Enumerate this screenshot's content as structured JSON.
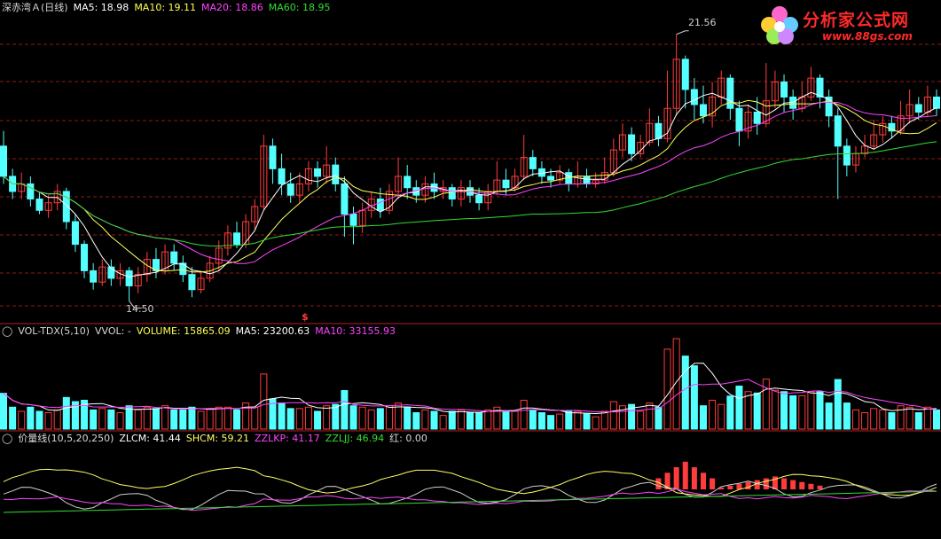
{
  "colors": {
    "up": "#ff3c3c",
    "down": "#54ffff",
    "ma5": "#ffffff",
    "ma10": "#ffff55",
    "ma20": "#ff44ff",
    "ma60": "#33dd33",
    "grid": "#8b1a1a",
    "white": "#d0d0d0",
    "zzlkp": "#ff44ff",
    "zzljj": "#33dd33",
    "shcm": "#ffff66"
  },
  "header": {
    "title": "深赤湾Ａ(日线)",
    "ma5": "MA5: 18.98",
    "ma10": "MA10: 19.11",
    "ma20": "MA20: 18.86",
    "ma60": "MA60: 18.95"
  },
  "price_panel": {
    "high_label": "21.56",
    "low_label": "14.50",
    "marker": "$"
  },
  "vol_panel": {
    "name": "VOL-TDX(5,10)",
    "vvol": "VVOL: -",
    "volume": "VOLUME: 15865.09",
    "ma5": "MA5: 23200.63",
    "ma10": "MA10: 33155.93"
  },
  "ind_panel": {
    "name": "价量线(10,5,20,250)",
    "zlcm": "ZLCM: 41.44",
    "shcm": "SHCM: 59.21",
    "zzlkp": "ZZLKP: 41.17",
    "zzljj": "ZZLJJ: 46.94",
    "red": "红: 0.00"
  },
  "logo": {
    "text": "分析家公式网",
    "url": "www.88gs.com"
  },
  "chart_data": {
    "type": "candlestick",
    "title": "深赤湾Ａ(日线)",
    "price_high": 21.56,
    "price_low": 14.5,
    "candles": [
      [
        18.6,
        17.8,
        19.0,
        17.6
      ],
      [
        17.8,
        17.4,
        18.0,
        17.2
      ],
      [
        17.4,
        17.6,
        17.9,
        17.2
      ],
      [
        17.6,
        17.2,
        17.8,
        17.0
      ],
      [
        17.2,
        16.9,
        17.4,
        16.8
      ],
      [
        16.9,
        17.1,
        17.3,
        16.7
      ],
      [
        17.1,
        17.4,
        17.6,
        16.9
      ],
      [
        17.4,
        16.6,
        17.5,
        16.4
      ],
      [
        16.6,
        16.0,
        16.8,
        15.8
      ],
      [
        16.0,
        15.3,
        16.1,
        15.1
      ],
      [
        15.3,
        15.0,
        15.5,
        14.8
      ],
      [
        15.0,
        15.4,
        15.6,
        14.9
      ],
      [
        15.4,
        15.1,
        15.6,
        14.9
      ],
      [
        15.1,
        15.3,
        15.5,
        14.9
      ],
      [
        15.3,
        14.9,
        15.4,
        14.5
      ],
      [
        14.9,
        15.2,
        15.4,
        14.7
      ],
      [
        15.2,
        15.6,
        15.8,
        15.0
      ],
      [
        15.6,
        15.3,
        15.9,
        15.1
      ],
      [
        15.3,
        15.8,
        16.0,
        15.2
      ],
      [
        15.8,
        15.5,
        16.0,
        15.3
      ],
      [
        15.5,
        15.2,
        15.7,
        15.0
      ],
      [
        15.2,
        14.8,
        15.4,
        14.6
      ],
      [
        14.8,
        15.1,
        15.3,
        14.7
      ],
      [
        15.1,
        15.5,
        15.7,
        15.0
      ],
      [
        15.5,
        15.9,
        16.1,
        15.3
      ],
      [
        15.9,
        16.3,
        16.5,
        15.7
      ],
      [
        16.3,
        16.0,
        16.6,
        15.9
      ],
      [
        16.0,
        16.6,
        16.8,
        15.9
      ],
      [
        16.6,
        17.0,
        17.2,
        16.4
      ],
      [
        17.0,
        18.6,
        18.9,
        16.9
      ],
      [
        18.6,
        18.0,
        18.8,
        17.6
      ],
      [
        18.0,
        17.6,
        18.4,
        17.3
      ],
      [
        17.6,
        17.3,
        17.9,
        17.1
      ],
      [
        17.3,
        17.6,
        17.9,
        17.1
      ],
      [
        17.6,
        18.0,
        18.2,
        17.4
      ],
      [
        18.0,
        17.8,
        18.2,
        17.5
      ],
      [
        17.8,
        18.1,
        18.6,
        17.6
      ],
      [
        18.1,
        17.6,
        18.3,
        17.4
      ],
      [
        17.6,
        16.8,
        17.8,
        16.2
      ],
      [
        16.8,
        16.5,
        17.0,
        16.0
      ],
      [
        16.5,
        16.9,
        17.1,
        16.3
      ],
      [
        16.9,
        17.2,
        17.4,
        16.7
      ],
      [
        17.2,
        16.9,
        17.5,
        16.7
      ],
      [
        16.9,
        17.4,
        17.6,
        16.8
      ],
      [
        17.4,
        17.8,
        18.3,
        17.2
      ],
      [
        17.8,
        17.5,
        18.1,
        17.2
      ],
      [
        17.5,
        17.3,
        17.7,
        17.1
      ],
      [
        17.3,
        17.6,
        17.8,
        17.1
      ],
      [
        17.6,
        17.4,
        17.9,
        17.2
      ],
      [
        17.4,
        17.5,
        17.7,
        17.2
      ],
      [
        17.5,
        17.2,
        17.6,
        17.0
      ],
      [
        17.2,
        17.5,
        17.7,
        17.0
      ],
      [
        17.5,
        17.3,
        17.7,
        17.1
      ],
      [
        17.3,
        17.1,
        17.5,
        16.9
      ],
      [
        17.1,
        17.4,
        17.6,
        16.9
      ],
      [
        17.4,
        17.7,
        18.2,
        17.3
      ],
      [
        17.7,
        17.5,
        18.0,
        17.3
      ],
      [
        17.5,
        17.8,
        18.0,
        17.4
      ],
      [
        17.8,
        18.3,
        18.9,
        17.7
      ],
      [
        18.3,
        18.0,
        18.5,
        17.8
      ],
      [
        18.0,
        17.8,
        18.2,
        17.6
      ],
      [
        17.8,
        17.7,
        18.0,
        17.5
      ],
      [
        17.7,
        17.9,
        18.1,
        17.6
      ],
      [
        17.9,
        17.6,
        18.0,
        17.4
      ],
      [
        17.6,
        17.8,
        18.2,
        17.5
      ],
      [
        17.8,
        17.6,
        18.0,
        17.5
      ],
      [
        17.6,
        17.7,
        17.9,
        17.5
      ],
      [
        17.7,
        17.9,
        18.3,
        17.6
      ],
      [
        17.9,
        18.5,
        18.8,
        17.8
      ],
      [
        18.5,
        18.9,
        19.2,
        18.3
      ],
      [
        18.9,
        18.4,
        19.1,
        18.2
      ],
      [
        18.4,
        18.7,
        18.9,
        18.3
      ],
      [
        18.7,
        19.2,
        19.6,
        18.6
      ],
      [
        19.2,
        18.8,
        19.4,
        18.6
      ],
      [
        18.8,
        19.6,
        20.6,
        18.7
      ],
      [
        19.6,
        20.9,
        21.56,
        19.4
      ],
      [
        20.9,
        20.1,
        21.0,
        19.6
      ],
      [
        20.1,
        19.7,
        20.4,
        19.3
      ],
      [
        19.7,
        19.4,
        20.2,
        19.2
      ],
      [
        19.4,
        19.9,
        20.3,
        19.1
      ],
      [
        19.9,
        20.4,
        20.6,
        19.7
      ],
      [
        20.4,
        19.6,
        20.5,
        19.3
      ],
      [
        19.6,
        19.0,
        19.8,
        18.6
      ],
      [
        19.0,
        19.5,
        19.7,
        18.8
      ],
      [
        19.5,
        19.2,
        19.9,
        18.9
      ],
      [
        19.2,
        19.8,
        20.8,
        19.1
      ],
      [
        19.8,
        20.3,
        20.6,
        19.6
      ],
      [
        20.3,
        19.9,
        20.5,
        19.5
      ],
      [
        19.9,
        19.6,
        20.1,
        19.3
      ],
      [
        19.6,
        19.9,
        20.3,
        19.5
      ],
      [
        19.9,
        20.4,
        20.7,
        19.8
      ],
      [
        20.4,
        19.9,
        20.5,
        19.6
      ],
      [
        19.9,
        19.4,
        20.1,
        19.1
      ],
      [
        19.4,
        18.6,
        19.6,
        17.2
      ],
      [
        18.6,
        18.1,
        18.8,
        17.8
      ],
      [
        18.1,
        18.4,
        18.6,
        17.9
      ],
      [
        18.4,
        18.6,
        18.9,
        18.3
      ],
      [
        18.6,
        18.9,
        19.3,
        18.5
      ],
      [
        18.9,
        19.2,
        19.4,
        18.7
      ],
      [
        19.2,
        19.0,
        19.4,
        18.8
      ],
      [
        19.0,
        19.4,
        19.8,
        18.9
      ],
      [
        19.4,
        19.7,
        20.1,
        19.2
      ],
      [
        19.7,
        19.5,
        19.9,
        19.3
      ],
      [
        19.5,
        19.9,
        20.2,
        19.4
      ],
      [
        19.9,
        19.6,
        20.1,
        19.4
      ]
    ],
    "volume_labels": [
      "VOLUME: 15865.09",
      "MA5: 23200.63",
      "MA10: 33155.93"
    ],
    "indicator_labels": [
      "ZLCM: 41.44",
      "SHCM: 59.21",
      "ZZLKP: 41.17",
      "ZZLJJ: 46.94",
      "红: 0.00"
    ]
  }
}
